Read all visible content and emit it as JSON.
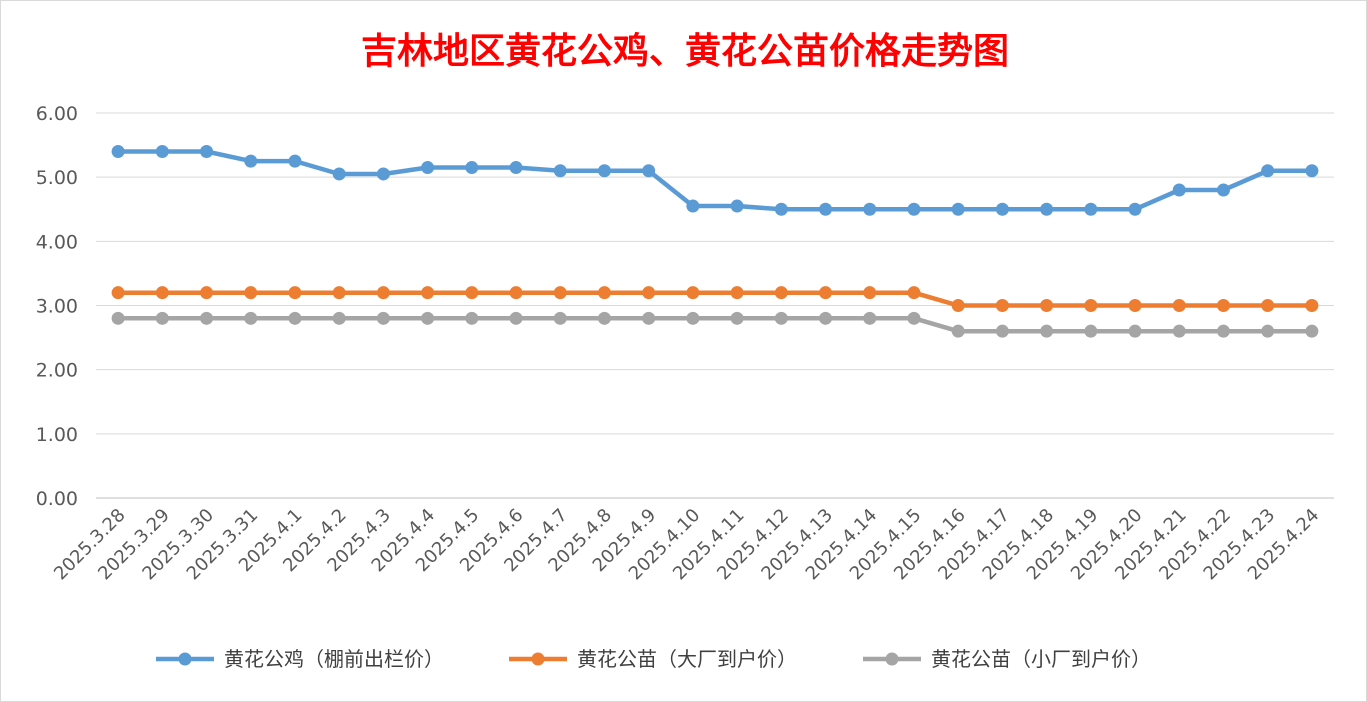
{
  "chart_data": {
    "type": "line",
    "title": "吉林地区黄花公鸡、黄花公苗价格走势图",
    "xlabel": "",
    "ylabel": "",
    "ylim": [
      0,
      6
    ],
    "ytick_step": 1,
    "ytick_labels": [
      "0.00",
      "1.00",
      "2.00",
      "3.00",
      "4.00",
      "5.00",
      "6.00"
    ],
    "grid": true,
    "legend_position": "bottom",
    "categories": [
      "2025.3.28",
      "2025.3.29",
      "2025.3.30",
      "2025.3.31",
      "2025.4.1",
      "2025.4.2",
      "2025.4.3",
      "2025.4.4",
      "2025.4.5",
      "2025.4.6",
      "2025.4.7",
      "2025.4.8",
      "2025.4.9",
      "2025.4.10",
      "2025.4.11",
      "2025.4.12",
      "2025.4.13",
      "2025.4.14",
      "2025.4.15",
      "2025.4.16",
      "2025.4.17",
      "2025.4.18",
      "2025.4.19",
      "2025.4.20",
      "2025.4.21",
      "2025.4.22",
      "2025.4.23",
      "2025.4.24"
    ],
    "series": [
      {
        "name": "黄花公鸡（棚前出栏价）",
        "color": "#5b9bd5",
        "values": [
          5.4,
          5.4,
          5.4,
          5.25,
          5.25,
          5.05,
          5.05,
          5.15,
          5.15,
          5.15,
          5.1,
          5.1,
          5.1,
          4.55,
          4.55,
          4.5,
          4.5,
          4.5,
          4.5,
          4.5,
          4.5,
          4.5,
          4.5,
          4.5,
          4.8,
          4.8,
          5.1,
          5.1
        ]
      },
      {
        "name": "黄花公苗（大厂到户价）",
        "color": "#ed7d31",
        "values": [
          3.2,
          3.2,
          3.2,
          3.2,
          3.2,
          3.2,
          3.2,
          3.2,
          3.2,
          3.2,
          3.2,
          3.2,
          3.2,
          3.2,
          3.2,
          3.2,
          3.2,
          3.2,
          3.2,
          3.0,
          3.0,
          3.0,
          3.0,
          3.0,
          3.0,
          3.0,
          3.0,
          3.0
        ]
      },
      {
        "name": "黄花公苗（小厂到户价）",
        "color": "#a5a5a5",
        "values": [
          2.8,
          2.8,
          2.8,
          2.8,
          2.8,
          2.8,
          2.8,
          2.8,
          2.8,
          2.8,
          2.8,
          2.8,
          2.8,
          2.8,
          2.8,
          2.8,
          2.8,
          2.8,
          2.8,
          2.6,
          2.6,
          2.6,
          2.6,
          2.6,
          2.6,
          2.6,
          2.6,
          2.6
        ]
      }
    ]
  }
}
